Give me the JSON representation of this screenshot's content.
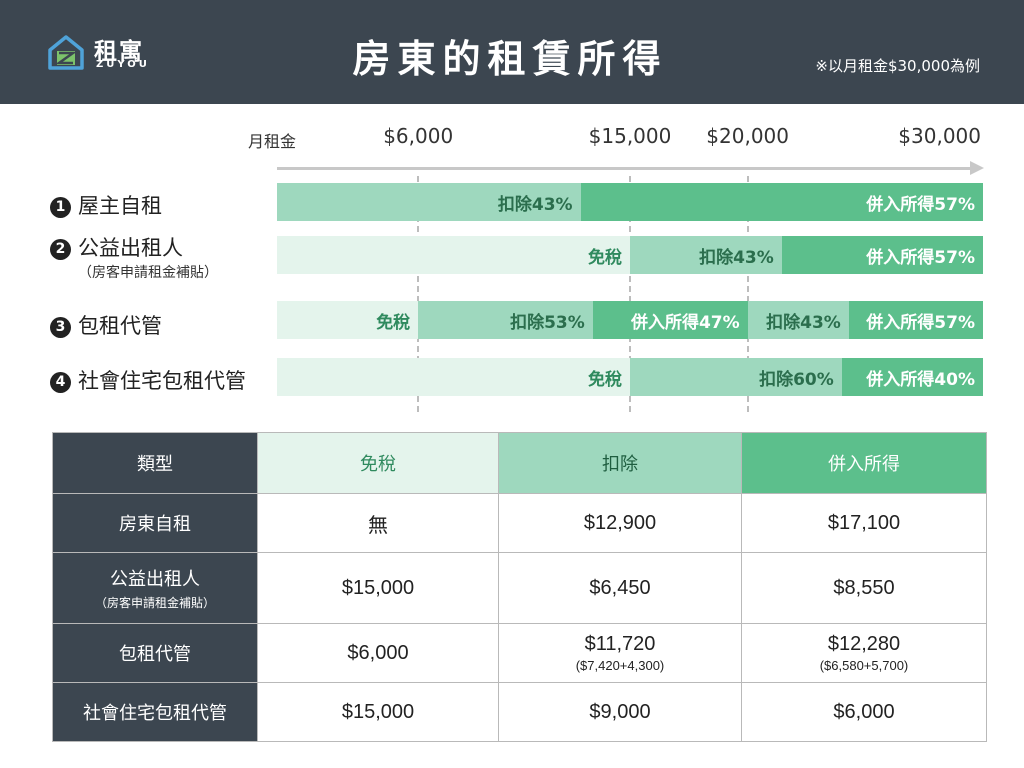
{
  "header": {
    "logo_cn": "租寓",
    "logo_en": "ZUYOU",
    "title": "房東的租賃所得",
    "note": "※以月租金$30,000為例",
    "background": "#3c4650"
  },
  "colors": {
    "exempt": "#e4f4ec",
    "deduct": "#9ed8be",
    "income": "#5cbf8c"
  },
  "chart_data": {
    "type": "bar",
    "orientation": "horizontal-stacked",
    "axis_label": "月租金",
    "xlim": [
      0,
      30000
    ],
    "ticks": [
      {
        "value": 6000,
        "label": "$6,000"
      },
      {
        "value": 15000,
        "label": "$15,000"
      },
      {
        "value": 20000,
        "label": "$20,000"
      },
      {
        "value": 30000,
        "label": "$30,000"
      }
    ],
    "categories": [
      {
        "num": "1",
        "name": "屋主自租",
        "sub": "",
        "segments": [
          {
            "kind": "deduct",
            "label": "扣除43%",
            "from": 0,
            "to": 12900
          },
          {
            "kind": "income",
            "label": "併入所得57%",
            "from": 12900,
            "to": 30000
          }
        ]
      },
      {
        "num": "2",
        "name": "公益出租人",
        "sub": "（房客申請租金補貼）",
        "segments": [
          {
            "kind": "exempt",
            "label": "免稅",
            "from": 0,
            "to": 15000
          },
          {
            "kind": "deduct",
            "label": "扣除43%",
            "from": 15000,
            "to": 21450
          },
          {
            "kind": "income",
            "label": "併入所得57%",
            "from": 21450,
            "to": 30000
          }
        ]
      },
      {
        "num": "3",
        "name": "包租代管",
        "sub": "",
        "segments": [
          {
            "kind": "exempt",
            "label": "免稅",
            "from": 0,
            "to": 6000
          },
          {
            "kind": "deduct",
            "label": "扣除53%",
            "from": 6000,
            "to": 13420
          },
          {
            "kind": "income",
            "label": "併入所得47%",
            "from": 13420,
            "to": 20000
          },
          {
            "kind": "deduct",
            "label": "扣除43%",
            "from": 20000,
            "to": 24300
          },
          {
            "kind": "income",
            "label": "併入所得57%",
            "from": 24300,
            "to": 30000
          }
        ]
      },
      {
        "num": "4",
        "name": "社會住宅包租代管",
        "sub": "",
        "segments": [
          {
            "kind": "exempt",
            "label": "免稅",
            "from": 0,
            "to": 15000
          },
          {
            "kind": "deduct",
            "label": "扣除60%",
            "from": 15000,
            "to": 24000
          },
          {
            "kind": "income",
            "label": "併入所得40%",
            "from": 24000,
            "to": 30000
          }
        ]
      }
    ]
  },
  "table": {
    "headers": [
      "類型",
      "免稅",
      "扣除",
      "併入所得"
    ],
    "rows": [
      {
        "type": "房東自租",
        "type_sub": "",
        "exempt": "無",
        "deduct": "$12,900",
        "deduct_sub": "",
        "income": "$17,100",
        "income_sub": ""
      },
      {
        "type": "公益出租人",
        "type_sub": "（房客申請租金補貼）",
        "exempt": "$15,000",
        "deduct": "$6,450",
        "deduct_sub": "",
        "income": "$8,550",
        "income_sub": ""
      },
      {
        "type": "包租代管",
        "type_sub": "",
        "exempt": "$6,000",
        "deduct": "$11,720",
        "deduct_sub": "($7,420+4,300)",
        "income": "$12,280",
        "income_sub": "($6,580+5,700)"
      },
      {
        "type": "社會住宅包租代管",
        "type_sub": "",
        "exempt": "$15,000",
        "deduct": "$9,000",
        "deduct_sub": "",
        "income": "$6,000",
        "income_sub": ""
      }
    ]
  }
}
